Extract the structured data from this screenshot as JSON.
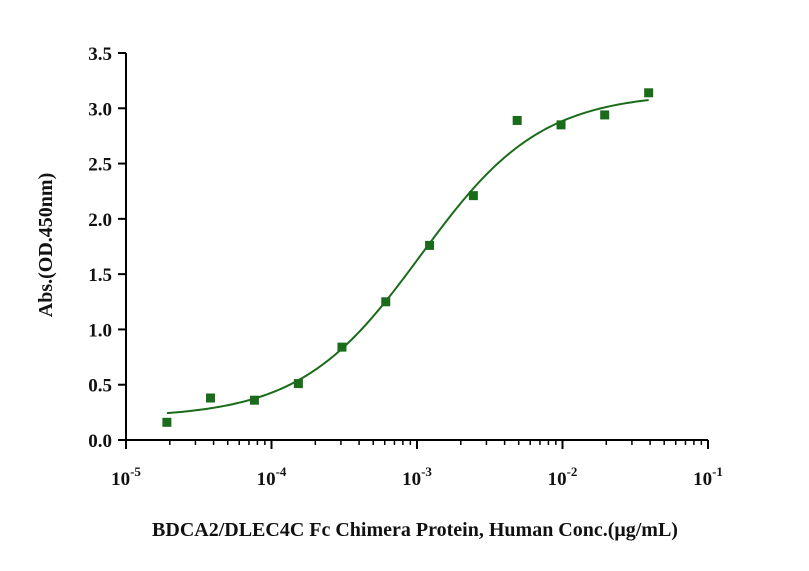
{
  "chart_data": {
    "type": "scatter",
    "title": "",
    "xlabel": "BDCA2/DLEC4C Fc Chimera Protein, Human  Conc.(μg/mL)",
    "ylabel": "Abs.(OD.450nm)",
    "xscale": "log",
    "xlim": [
      1e-05,
      0.1
    ],
    "ylim": [
      0,
      3.5
    ],
    "x_ticks": [
      {
        "value": 1e-05,
        "base": "10",
        "exp": "-5"
      },
      {
        "value": 0.0001,
        "base": "10",
        "exp": "-4"
      },
      {
        "value": 0.001,
        "base": "10",
        "exp": "-3"
      },
      {
        "value": 0.01,
        "base": "10",
        "exp": "-2"
      },
      {
        "value": 0.1,
        "base": "10",
        "exp": "-1"
      }
    ],
    "y_ticks": [
      "0.0",
      "0.5",
      "1.0",
      "1.5",
      "2.0",
      "2.5",
      "3.0",
      "3.5"
    ],
    "grid": false,
    "legend": "none",
    "series": [
      {
        "marker": "square",
        "color": "#1a6b1a",
        "points": [
          {
            "x": 1.91e-05,
            "y": 0.16
          },
          {
            "x": 3.81e-05,
            "y": 0.38
          },
          {
            "x": 7.63e-05,
            "y": 0.36
          },
          {
            "x": 0.000153,
            "y": 0.51
          },
          {
            "x": 0.000305,
            "y": 0.84
          },
          {
            "x": 0.00061,
            "y": 1.25
          },
          {
            "x": 0.00122,
            "y": 1.76
          },
          {
            "x": 0.00244,
            "y": 2.21
          },
          {
            "x": 0.00488,
            "y": 2.89
          },
          {
            "x": 0.00977,
            "y": 2.85
          },
          {
            "x": 0.0195,
            "y": 2.94
          },
          {
            "x": 0.0391,
            "y": 3.14
          }
        ]
      }
    ],
    "fit_curve": {
      "type": "4PL",
      "color": "#1a6b1a",
      "bottom": 0.2,
      "top": 3.14,
      "ec50": 0.00106,
      "hill": 1.05,
      "x_range": [
        1.91e-05,
        0.0391
      ]
    }
  }
}
